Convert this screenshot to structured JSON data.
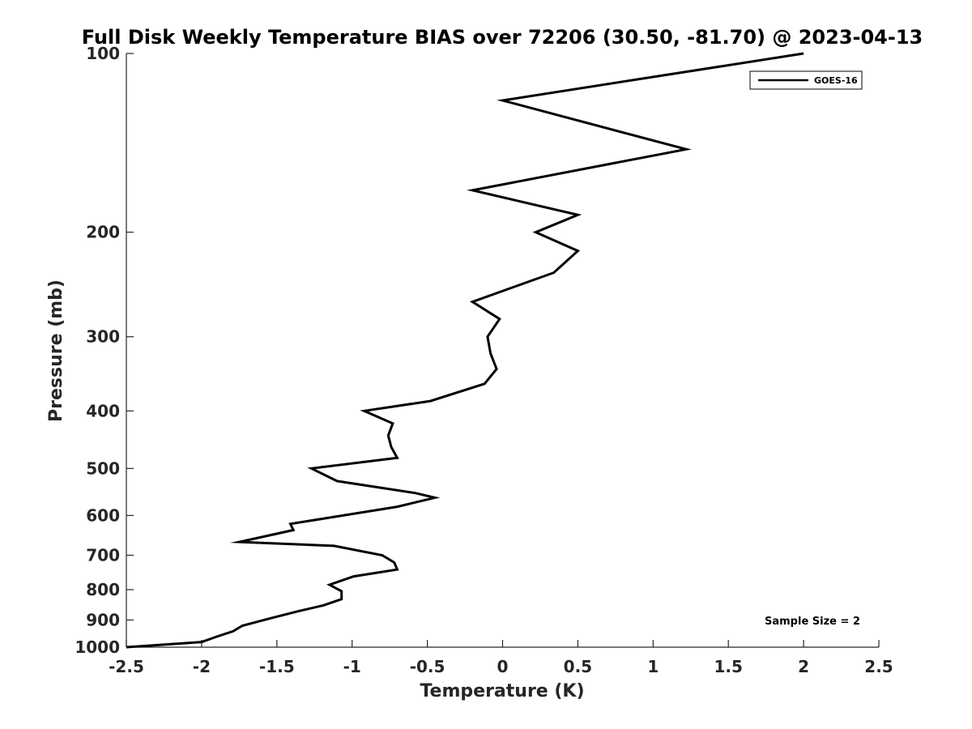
{
  "chart_data": {
    "type": "line",
    "title": "Full Disk Weekly Temperature BIAS over 72206 (30.50, -81.70) @ 2023-04-13",
    "xlabel": "Temperature (K)",
    "ylabel": "Pressure (mb)",
    "xlim": [
      -2.5,
      2.5
    ],
    "ylim": [
      100,
      1000
    ],
    "y_scale": "log",
    "y_reversed": true,
    "x_ticks": [
      "-2.5",
      "-2",
      "-1.5",
      "-1",
      "-0.5",
      "0",
      "0.5",
      "1",
      "1.5",
      "2",
      "2.5"
    ],
    "y_ticks": [
      "100",
      "200",
      "300",
      "400",
      "500",
      "600",
      "700",
      "800",
      "900",
      "1000"
    ],
    "grid": false,
    "legend_position": "top-right",
    "series": [
      {
        "name": "GOES-16",
        "color": "#000000",
        "x": [
          2.0,
          0.0,
          1.22,
          -0.2,
          0.5,
          0.22,
          0.5,
          0.34,
          -0.2,
          -0.02,
          -0.1,
          -0.08,
          -0.04,
          -0.12,
          -0.48,
          -0.92,
          -0.73,
          -0.76,
          -0.74,
          -0.7,
          -1.27,
          -1.1,
          -0.58,
          -0.45,
          -0.7,
          -1.41,
          -1.39,
          -1.75,
          -1.12,
          -0.8,
          -0.72,
          -0.7,
          -0.99,
          -1.15,
          -1.07,
          -1.07,
          -1.19,
          -1.36,
          -1.55,
          -1.73,
          -1.79,
          -1.9,
          -2.0,
          -2.5
        ],
        "y": [
          100,
          120,
          145,
          170,
          187,
          200,
          215,
          234,
          262,
          280,
          300,
          320,
          340,
          360,
          385,
          400,
          420,
          440,
          460,
          480,
          500,
          525,
          550,
          560,
          580,
          620,
          635,
          665,
          675,
          700,
          720,
          740,
          760,
          785,
          805,
          830,
          850,
          870,
          895,
          920,
          940,
          960,
          980,
          1000
        ]
      }
    ],
    "annotations": [
      "Sample Size = 2"
    ]
  }
}
